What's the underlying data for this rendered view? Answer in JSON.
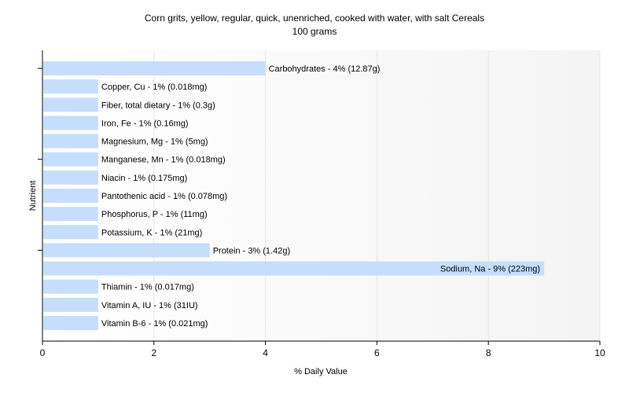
{
  "chart_data": {
    "type": "bar",
    "orientation": "horizontal",
    "title": "Corn grits, yellow, regular, quick, unenriched, cooked with water, with salt Cereals",
    "subtitle": "100 grams",
    "xlabel": "% Daily Value",
    "ylabel": "Nutrient",
    "xlim": [
      0,
      10
    ],
    "xticks": [
      0,
      2,
      4,
      6,
      8,
      10
    ],
    "grid": true,
    "bar_color": "#c6defc",
    "categories": [
      "Carbohydrates",
      "Copper, Cu",
      "Fiber, total dietary",
      "Iron, Fe",
      "Magnesium, Mg",
      "Manganese, Mn",
      "Niacin",
      "Pantothenic acid",
      "Phosphorus, P",
      "Potassium, K",
      "Protein",
      "Sodium, Na",
      "Thiamin",
      "Vitamin A, IU",
      "Vitamin B-6"
    ],
    "values": [
      4,
      1,
      1,
      1,
      1,
      1,
      1,
      1,
      1,
      1,
      3,
      9,
      1,
      1,
      1
    ],
    "labels": [
      "Carbohydrates - 4% (12.87g)",
      "Copper, Cu - 1% (0.018mg)",
      "Fiber, total dietary - 1% (0.3g)",
      "Iron, Fe - 1% (0.16mg)",
      "Magnesium, Mg - 1% (5mg)",
      "Manganese, Mn - 1% (0.018mg)",
      "Niacin - 1% (0.175mg)",
      "Pantothenic acid - 1% (0.078mg)",
      "Phosphorus, P - 1% (11mg)",
      "Potassium, K - 1% (21mg)",
      "Protein - 3% (1.42g)",
      "Sodium, Na - 9% (223mg)",
      "Thiamin - 1% (0.017mg)",
      "Vitamin A, IU - 1% (31IU)",
      "Vitamin B-6 - 1% (0.021mg)"
    ]
  }
}
